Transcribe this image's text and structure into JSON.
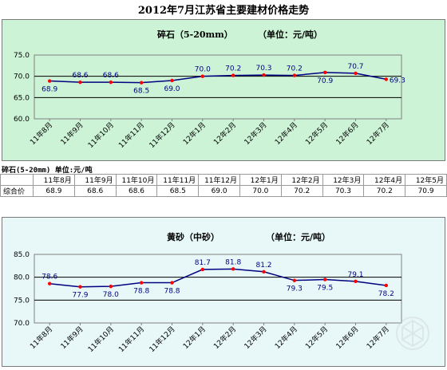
{
  "page": {
    "title": "2012年7月江苏省主要建材价格走势"
  },
  "table": {
    "caption": "碎石(5-20mm) 单位:元/吨",
    "header": [
      "",
      "11年8月",
      "11年9月",
      "11年10月",
      "11年11月",
      "11年12月",
      "12年1月",
      "12年2月",
      "12年3月",
      "12年4月",
      "12年5月"
    ],
    "row_label": "综合价",
    "values": [
      "68.9",
      "68.6",
      "68.6",
      "68.5",
      "69.0",
      "70.0",
      "70.2",
      "70.3",
      "70.2",
      "70.9"
    ]
  },
  "chart_data": [
    {
      "type": "line",
      "title": "碎石（5-20mm）",
      "unit": "（单位：元/吨）",
      "categories": [
        "11年8月",
        "11年9月",
        "11年10月",
        "11年11月",
        "11年12月",
        "12年1月",
        "12年2月",
        "12年3月",
        "12年4月",
        "12年5月",
        "12年6月",
        "12年7月"
      ],
      "values": [
        68.9,
        68.6,
        68.6,
        68.5,
        69.0,
        70.0,
        70.2,
        70.3,
        70.2,
        70.9,
        70.7,
        69.3
      ],
      "labels": [
        "68.9",
        "68.6",
        "68.6",
        "68.5",
        "69.0",
        "70.0",
        "70.2",
        "70.3",
        "70.2",
        "70.9",
        "70.7",
        "69.3"
      ],
      "label_pos": [
        "below",
        "above",
        "above",
        "below",
        "below",
        "above",
        "above",
        "above",
        "above",
        "below",
        "above",
        "right"
      ],
      "yticks": [
        "75.0",
        "70.0",
        "65.0",
        "60.0"
      ],
      "ylim": [
        60,
        75
      ],
      "grid": true,
      "colors": {
        "line": "#000080",
        "marker": "#ff0000",
        "plot_bg": "#ccf3d6",
        "grid": "#000000"
      }
    },
    {
      "type": "line",
      "title": "黄砂（中砂）",
      "unit": "（单位：元/吨）",
      "categories": [
        "11年8月",
        "11年9月",
        "11年10月",
        "11年11月",
        "11年12月",
        "12年1月",
        "12年2月",
        "12年3月",
        "12年4月",
        "12年5月",
        "12年6月",
        "12年7月"
      ],
      "values": [
        78.6,
        77.9,
        78.0,
        78.8,
        78.8,
        81.7,
        81.8,
        81.2,
        79.3,
        79.5,
        79.1,
        78.2
      ],
      "labels": [
        "78.6",
        "77.9",
        "78.0",
        "78.8",
        "78.8",
        "81.7",
        "81.8",
        "81.2",
        "79.3",
        "79.5",
        "79.1",
        "78.2"
      ],
      "label_pos": [
        "above",
        "below",
        "below",
        "below",
        "below",
        "above",
        "above",
        "above",
        "below",
        "below",
        "above",
        "below"
      ],
      "yticks": [
        "85.0",
        "80.0",
        "75.0",
        "70.0"
      ],
      "ylim": [
        70,
        85
      ],
      "grid": true,
      "colors": {
        "line": "#000080",
        "marker": "#ff0000",
        "plot_bg": "#e8f8f8",
        "grid": "#000000"
      }
    }
  ]
}
